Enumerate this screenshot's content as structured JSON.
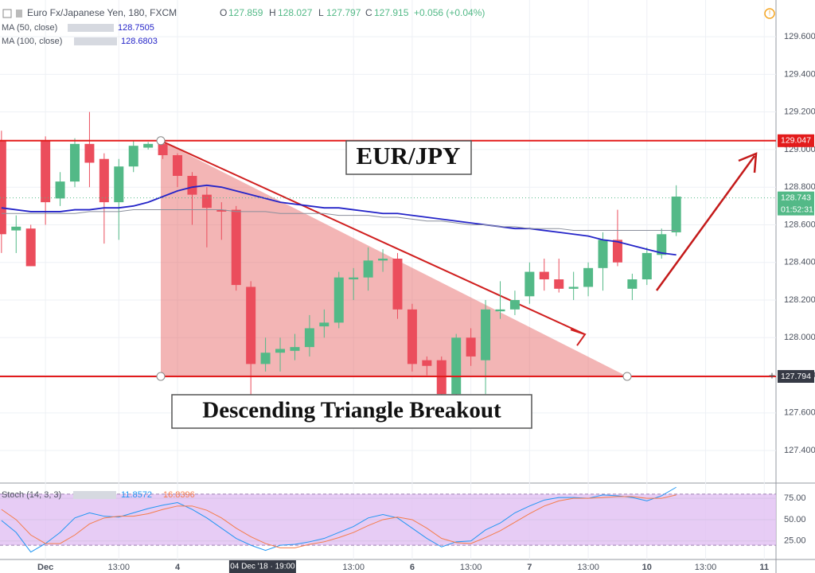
{
  "chart_data": [
    {
      "type": "candlestick",
      "title": "Euro Fx/Japanese Yen, 180, FXCM",
      "ohlc_letters": [
        "O",
        "H",
        "L",
        "C"
      ],
      "ohlc_values": [
        127.859,
        128.027,
        127.797,
        127.915
      ],
      "change": "+0.056 (+0.04%)",
      "open": [
        129.05,
        128.57,
        128.58,
        129.05,
        128.74,
        128.83,
        129.03,
        128.95,
        128.72,
        128.91,
        129.01,
        129.03,
        128.97,
        128.86,
        128.76,
        128.68,
        128.68,
        128.27,
        127.86,
        127.92,
        127.93,
        127.95,
        128.06,
        128.08,
        128.31,
        128.32,
        128.41,
        128.42,
        128.15,
        127.88,
        127.88,
        127.7,
        128.0,
        127.88,
        128.14,
        128.15,
        128.22,
        128.35,
        128.31,
        128.26,
        128.27,
        128.37,
        128.52,
        128.26,
        128.31,
        128.44,
        128.56
      ],
      "high": [
        129.1,
        128.65,
        128.6,
        129.07,
        128.88,
        129.06,
        129.2,
        128.98,
        128.95,
        129.05,
        129.04,
        129.05,
        128.98,
        128.88,
        128.8,
        128.72,
        128.7,
        128.3,
        128.0,
        128.0,
        128.02,
        128.12,
        128.15,
        128.35,
        128.37,
        128.48,
        128.47,
        128.45,
        128.18,
        127.9,
        127.9,
        128.02,
        128.05,
        128.2,
        128.3,
        128.25,
        128.4,
        128.42,
        128.42,
        128.35,
        128.4,
        128.56,
        128.68,
        128.34,
        128.48,
        128.58,
        128.81
      ],
      "low": [
        128.45,
        128.45,
        128.38,
        128.6,
        128.7,
        128.8,
        128.8,
        128.5,
        128.52,
        128.88,
        129.0,
        128.95,
        128.8,
        128.6,
        128.48,
        128.52,
        128.25,
        127.65,
        127.82,
        127.82,
        127.88,
        127.9,
        128.0,
        128.05,
        128.2,
        128.25,
        128.35,
        128.1,
        127.82,
        127.8,
        127.68,
        127.68,
        127.85,
        127.7,
        128.1,
        128.12,
        128.18,
        128.25,
        128.24,
        128.2,
        128.22,
        128.25,
        128.38,
        128.2,
        128.28,
        128.42,
        128.54
      ],
      "close": [
        128.55,
        128.59,
        128.38,
        128.72,
        128.83,
        129.03,
        128.93,
        128.72,
        128.91,
        129.02,
        129.03,
        128.97,
        128.86,
        128.76,
        128.69,
        128.67,
        128.28,
        127.86,
        127.92,
        127.94,
        127.95,
        128.05,
        128.08,
        128.32,
        128.32,
        128.41,
        128.42,
        128.15,
        127.86,
        127.85,
        127.7,
        128.0,
        127.9,
        128.15,
        128.15,
        128.2,
        128.35,
        128.31,
        128.26,
        128.27,
        128.37,
        128.52,
        128.4,
        128.31,
        128.45,
        128.55,
        128.75
      ],
      "up_color": "#53b987",
      "down_color": "#eb4d5c",
      "moving_averages": [
        {
          "name": "MA (50, close)",
          "value": 128.7505,
          "color": "#2424c8",
          "values": [
            128.69,
            128.68,
            128.67,
            128.67,
            128.67,
            128.68,
            128.68,
            128.69,
            128.69,
            128.7,
            128.72,
            128.75,
            128.78,
            128.8,
            128.81,
            128.8,
            128.78,
            128.76,
            128.74,
            128.72,
            128.71,
            128.7,
            128.69,
            128.69,
            128.68,
            128.67,
            128.66,
            128.66,
            128.65,
            128.64,
            128.63,
            128.62,
            128.61,
            128.6,
            128.59,
            128.58,
            128.58,
            128.57,
            128.56,
            128.55,
            128.54,
            128.52,
            128.51,
            128.49,
            128.47,
            128.45,
            128.44
          ]
        },
        {
          "name": "MA (100, close)",
          "value": 128.6803,
          "color": "#8a8f9c",
          "values": [
            128.66,
            128.66,
            128.66,
            128.66,
            128.66,
            128.66,
            128.67,
            128.67,
            128.67,
            128.68,
            128.68,
            128.68,
            128.68,
            128.68,
            128.68,
            128.68,
            128.67,
            128.67,
            128.67,
            128.66,
            128.66,
            128.66,
            128.66,
            128.65,
            128.65,
            128.65,
            128.64,
            128.64,
            128.63,
            128.62,
            128.62,
            128.61,
            128.6,
            128.6,
            128.59,
            128.59,
            128.58,
            128.58,
            128.58,
            128.57,
            128.57,
            128.57,
            128.57,
            128.57,
            128.57,
            128.57,
            128.57
          ]
        }
      ],
      "ylim": [
        127.227,
        129.795
      ],
      "yticks": [
        {
          "value": 127.4,
          "label": "127.400"
        },
        {
          "value": 127.6,
          "label": "127.600"
        },
        {
          "value": 127.8,
          "label": "127.800"
        },
        {
          "value": 128.0,
          "label": "128.000"
        },
        {
          "value": 128.2,
          "label": "128.200"
        },
        {
          "value": 128.4,
          "label": "128.400"
        },
        {
          "value": 128.6,
          "label": "128.600"
        },
        {
          "value": 128.8,
          "label": "128.800"
        },
        {
          "value": 129.0,
          "label": "129.000"
        },
        {
          "value": 129.2,
          "label": "129.200"
        },
        {
          "value": 129.4,
          "label": "129.400"
        },
        {
          "value": 129.6,
          "label": "129.600"
        }
      ],
      "xlim": [
        -0.1,
        52.8
      ],
      "xticks": [
        {
          "value": 3,
          "label": "Dec"
        },
        {
          "value": 8,
          "label": "13:00"
        },
        {
          "value": 12,
          "label": "4"
        },
        {
          "value": 24,
          "label": "13:00"
        },
        {
          "value": 28,
          "label": "6"
        },
        {
          "value": 32,
          "label": "13:00"
        },
        {
          "value": 36,
          "label": "7"
        },
        {
          "value": 40,
          "label": "13:00"
        },
        {
          "value": 44,
          "label": "10"
        },
        {
          "value": 48,
          "label": "13:00"
        },
        {
          "value": 52,
          "label": "11"
        }
      ],
      "crosshair": {
        "value": 17.8,
        "label": "04 Dec '18 · 19:00"
      },
      "levels": [
        129.047,
        127.794
      ],
      "level_color": "#e31b1b",
      "last_price": 128.743,
      "countdown": "01:52:31",
      "annotations": [
        "EUR/JPY",
        "Descending Triangle Breakout"
      ]
    },
    {
      "type": "line",
      "title": "Stoch (14, 3, 3)",
      "readouts": [
        11.8572,
        16.8396
      ],
      "series": [
        {
          "color": "#2196f3",
          "values": [
            49,
            35,
            12,
            22,
            35,
            52,
            58,
            54,
            53,
            58,
            63,
            67,
            70,
            62,
            52,
            40,
            28,
            20,
            14,
            20,
            21,
            24,
            28,
            35,
            42,
            52,
            56,
            52,
            40,
            28,
            18,
            24,
            25,
            38,
            46,
            58,
            66,
            73,
            76,
            76,
            75,
            79,
            78,
            76,
            72,
            78,
            88
          ]
        },
        {
          "color": "#f57c4a",
          "values": [
            62,
            50,
            32,
            22,
            22,
            32,
            45,
            52,
            54,
            54,
            57,
            62,
            66,
            66,
            61,
            52,
            40,
            30,
            22,
            17,
            17,
            21,
            24,
            29,
            35,
            43,
            50,
            53,
            50,
            40,
            28,
            23,
            22,
            29,
            37,
            47,
            57,
            66,
            72,
            75,
            75,
            76,
            77,
            77,
            75,
            75,
            79
          ]
        }
      ],
      "band": [
        20,
        80
      ],
      "band_color": "#e1bff2",
      "ylim": [
        3.3,
        92.9
      ],
      "yticks": [
        {
          "value": 25,
          "label": "25.00"
        },
        {
          "value": 50,
          "label": "50.00"
        },
        {
          "value": 75,
          "label": "75.00"
        }
      ]
    }
  ]
}
